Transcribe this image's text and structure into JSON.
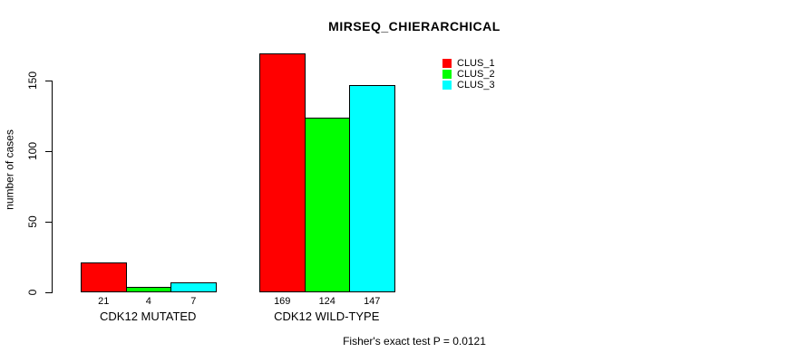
{
  "chart_data": {
    "type": "bar",
    "title": "MIRSEQ_CHIERARCHICAL",
    "xlabel": "",
    "ylabel": "number of cases",
    "categories": [
      "CDK12 MUTATED",
      "CDK12 WILD-TYPE"
    ],
    "series": [
      {
        "name": "CLUS_1",
        "color": "#ff0000",
        "values": [
          21,
          169
        ]
      },
      {
        "name": "CLUS_2",
        "color": "#00ff00",
        "values": [
          4,
          124
        ]
      },
      {
        "name": "CLUS_3",
        "color": "#00ffff",
        "values": [
          7,
          147
        ]
      }
    ],
    "bar_value_labels": [
      [
        "21",
        "4",
        "7"
      ],
      [
        "169",
        "124",
        "147"
      ]
    ],
    "y_ticks": [
      0,
      50,
      100,
      150
    ],
    "ylim": [
      0,
      169
    ],
    "grid": false,
    "legend_position": "top-right",
    "legend_entries": [
      "CLUS_1",
      "CLUS_2",
      "CLUS_3"
    ],
    "annotation": "Fisher's exact test P = 0.0121"
  }
}
